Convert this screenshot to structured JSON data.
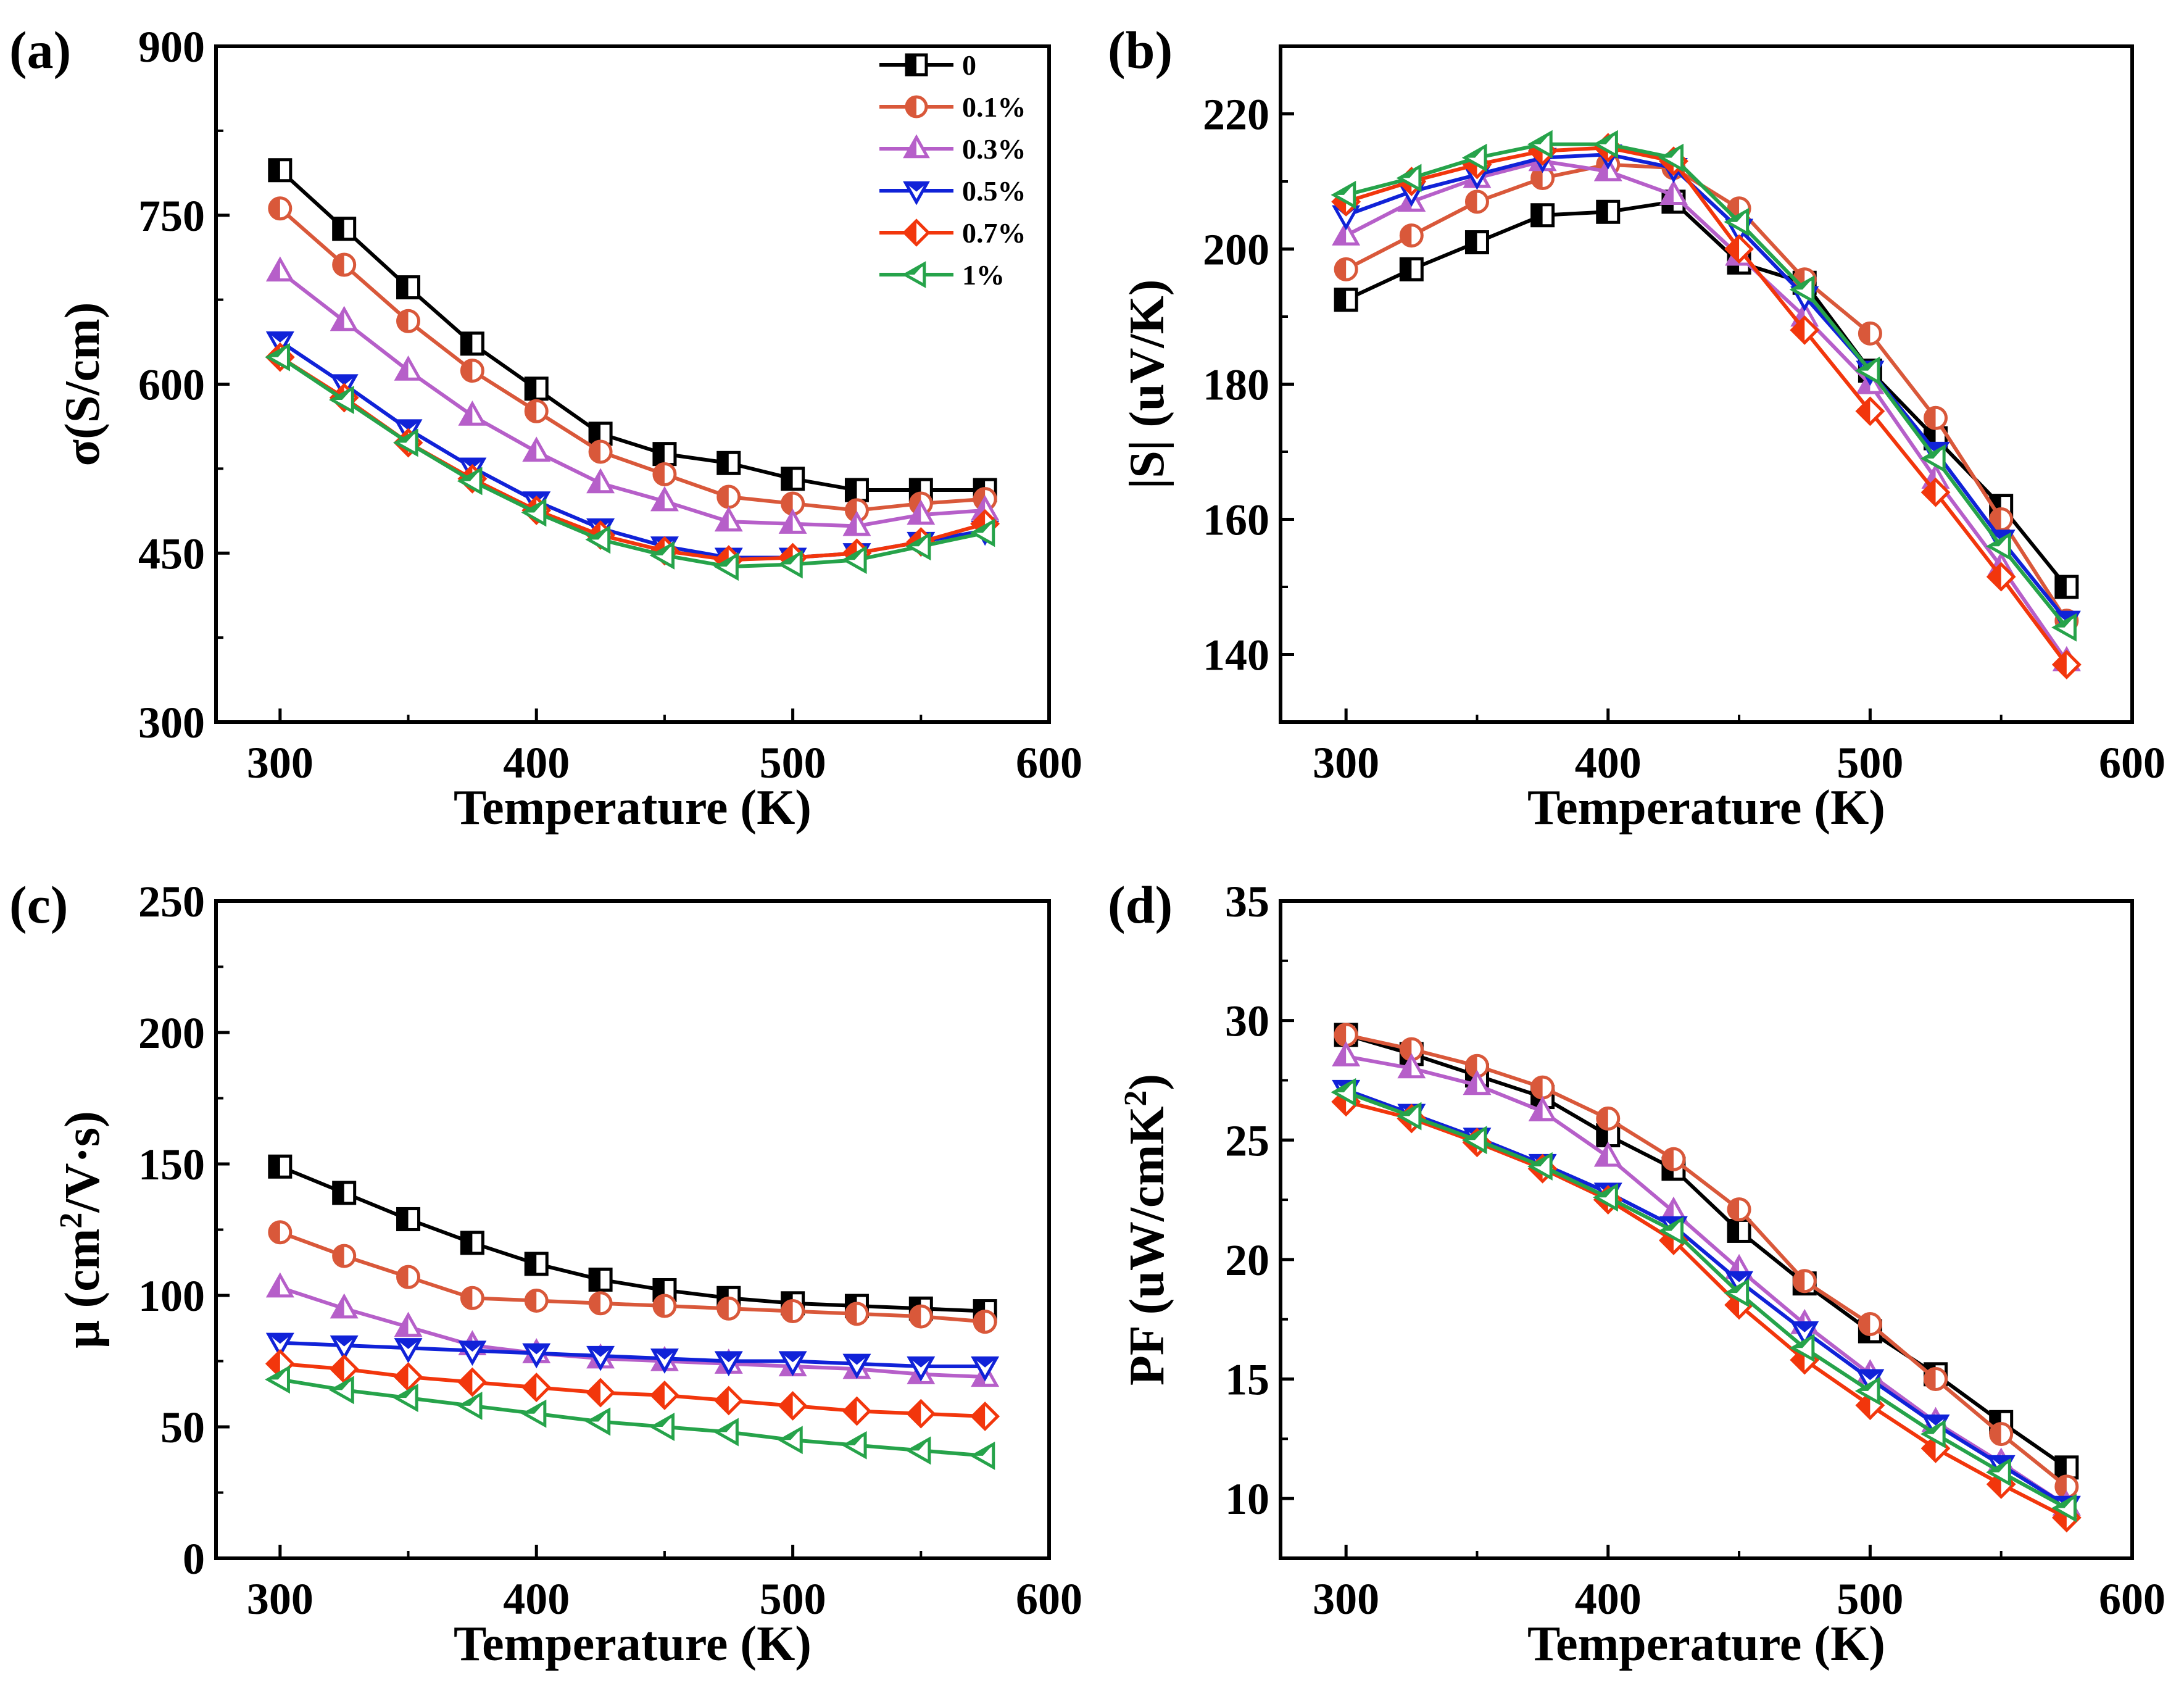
{
  "colors": {
    "0": "#000000",
    "0.1%": "#d9583a",
    "0.3%": "#b65fc9",
    "0.5%": "#1022d8",
    "0.7%": "#f2360c",
    "1%": "#26a34a"
  },
  "legend": [
    "0",
    "0.1%",
    "0.3%",
    "0.5%",
    "0.7%",
    "1%"
  ],
  "chart_data": [
    {
      "panel": "(a)",
      "type": "line",
      "xlabel": "Temperature (K)",
      "ylabel": "σ(S/cm)",
      "xlim": [
        275,
        600
      ],
      "ylim": [
        300,
        900
      ],
      "xticks": [
        300,
        400,
        500,
        600
      ],
      "yticks": [
        300,
        450,
        600,
        750,
        900
      ],
      "legend_position": "top-right",
      "x": [
        300,
        325,
        350,
        375,
        400,
        425,
        450,
        475,
        500,
        525,
        550,
        575
      ],
      "series": [
        {
          "name": "0",
          "marker": "square",
          "values": [
            790,
            738,
            686,
            636,
            596,
            556,
            538,
            530,
            516,
            506,
            506,
            506
          ]
        },
        {
          "name": "0.1%",
          "marker": "circle",
          "values": [
            756,
            706,
            656,
            612,
            576,
            540,
            520,
            500,
            494,
            488,
            494,
            498
          ]
        },
        {
          "name": "0.3%",
          "marker": "triangle-up",
          "values": [
            700,
            656,
            612,
            572,
            540,
            512,
            496,
            478,
            476,
            474,
            484,
            488
          ]
        },
        {
          "name": "0.5%",
          "marker": "triangle-down",
          "values": [
            638,
            600,
            560,
            526,
            496,
            472,
            456,
            446,
            446,
            450,
            460,
            470
          ]
        },
        {
          "name": "0.7%",
          "marker": "diamond",
          "values": [
            624,
            588,
            548,
            516,
            488,
            466,
            452,
            444,
            446,
            450,
            460,
            476
          ]
        },
        {
          "name": "1%",
          "marker": "triangle-left",
          "values": [
            624,
            586,
            548,
            514,
            486,
            462,
            448,
            438,
            440,
            444,
            456,
            468
          ]
        }
      ]
    },
    {
      "panel": "(b)",
      "type": "line",
      "xlabel": "Temperature (K)",
      "ylabel": "|S| (uV/K)",
      "xlim": [
        275,
        600
      ],
      "ylim": [
        130,
        230
      ],
      "xticks": [
        300,
        400,
        500,
        600
      ],
      "yticks": [
        140,
        160,
        180,
        200,
        220
      ],
      "x": [
        300,
        325,
        350,
        375,
        400,
        425,
        450,
        475,
        500,
        525,
        550,
        575
      ],
      "series": [
        {
          "name": "0",
          "values": [
            192.5,
            197,
            201,
            205,
            205.5,
            207,
            198,
            195,
            182,
            172,
            162,
            150
          ]
        },
        {
          "name": "0.1%",
          "values": [
            197,
            202,
            207,
            210.5,
            212.5,
            212,
            206,
            195.5,
            187.5,
            175,
            160,
            145
          ]
        },
        {
          "name": "0.3%",
          "values": [
            202,
            207,
            210.5,
            213,
            211.5,
            208,
            199,
            190,
            180,
            166,
            153,
            139
          ]
        },
        {
          "name": "0.5%",
          "values": [
            205,
            208.5,
            211,
            213.5,
            214,
            212,
            203,
            193,
            182,
            170,
            157,
            145
          ]
        },
        {
          "name": "0.7%",
          "values": [
            207,
            210,
            212.5,
            214.5,
            215,
            213,
            200,
            188,
            176,
            164,
            151.5,
            138.5
          ]
        },
        {
          "name": "1%",
          "values": [
            208,
            210.5,
            213.5,
            215.5,
            215.5,
            213.5,
            204,
            194,
            182,
            169,
            156,
            144
          ]
        }
      ]
    },
    {
      "panel": "(c)",
      "type": "line",
      "xlabel": "Temperature (K)",
      "ylabel_main": "μ (cm",
      "ylabel_sup": "2",
      "ylabel_end": "/V·s)",
      "xlim": [
        275,
        600
      ],
      "ylim": [
        0,
        250
      ],
      "xticks": [
        300,
        400,
        500,
        600
      ],
      "yticks": [
        0,
        50,
        100,
        150,
        200,
        250
      ],
      "x": [
        300,
        325,
        350,
        375,
        400,
        425,
        450,
        475,
        500,
        525,
        550,
        575
      ],
      "series": [
        {
          "name": "0",
          "values": [
            149,
            139,
            129,
            120,
            112,
            106,
            102,
            99,
            97,
            96,
            95,
            94
          ]
        },
        {
          "name": "0.1%",
          "values": [
            124,
            115,
            107,
            99,
            98,
            97,
            96,
            95,
            94,
            93,
            92,
            90
          ]
        },
        {
          "name": "0.3%",
          "values": [
            103,
            95,
            88,
            81,
            78,
            76,
            75,
            74,
            73,
            72,
            70,
            69
          ]
        },
        {
          "name": "0.5%",
          "values": [
            82,
            81,
            80,
            79,
            78,
            77,
            76,
            75,
            75,
            74,
            73,
            73
          ]
        },
        {
          "name": "0.7%",
          "values": [
            74,
            72,
            69,
            67,
            65,
            63,
            62,
            60,
            58,
            56,
            55,
            54
          ]
        },
        {
          "name": "1%",
          "values": [
            68,
            64,
            61,
            58,
            55,
            52,
            50,
            48,
            45,
            43,
            41,
            39
          ]
        }
      ]
    },
    {
      "panel": "(d)",
      "type": "line",
      "xlabel": "Temperature (K)",
      "ylabel_main": "PF (uW/cmK",
      "ylabel_sup": "2",
      "ylabel_end": ")",
      "xlim": [
        275,
        600
      ],
      "ylim": [
        7.5,
        35
      ],
      "xticks": [
        300,
        400,
        500,
        600
      ],
      "yticks": [
        10,
        15,
        20,
        25,
        30,
        35
      ],
      "x": [
        300,
        325,
        350,
        375,
        400,
        425,
        450,
        475,
        500,
        525,
        550,
        575
      ],
      "series": [
        {
          "name": "0",
          "values": [
            29.4,
            28.6,
            27.7,
            26.8,
            25.2,
            23.8,
            21.2,
            19.0,
            17.0,
            15.2,
            13.2,
            11.3
          ]
        },
        {
          "name": "0.1%",
          "values": [
            29.4,
            28.8,
            28.1,
            27.2,
            25.9,
            24.2,
            22.1,
            19.1,
            17.3,
            15.0,
            12.7,
            10.5
          ]
        },
        {
          "name": "0.3%",
          "values": [
            28.5,
            28.0,
            27.3,
            26.2,
            24.3,
            22.0,
            19.6,
            17.3,
            15.2,
            13.2,
            11.5,
            9.7
          ]
        },
        {
          "name": "0.5%",
          "values": [
            27.1,
            26.1,
            25.1,
            24.0,
            22.8,
            21.4,
            19.1,
            17.0,
            15.0,
            13.1,
            11.4,
            9.7
          ]
        },
        {
          "name": "0.7%",
          "values": [
            26.6,
            25.9,
            24.9,
            23.8,
            22.5,
            20.8,
            18.1,
            15.8,
            13.9,
            12.1,
            10.6,
            9.2
          ]
        },
        {
          "name": "1%",
          "values": [
            27.0,
            26.0,
            25.0,
            23.9,
            22.6,
            21.2,
            18.6,
            16.3,
            14.5,
            12.7,
            11.1,
            9.6
          ]
        }
      ]
    }
  ]
}
